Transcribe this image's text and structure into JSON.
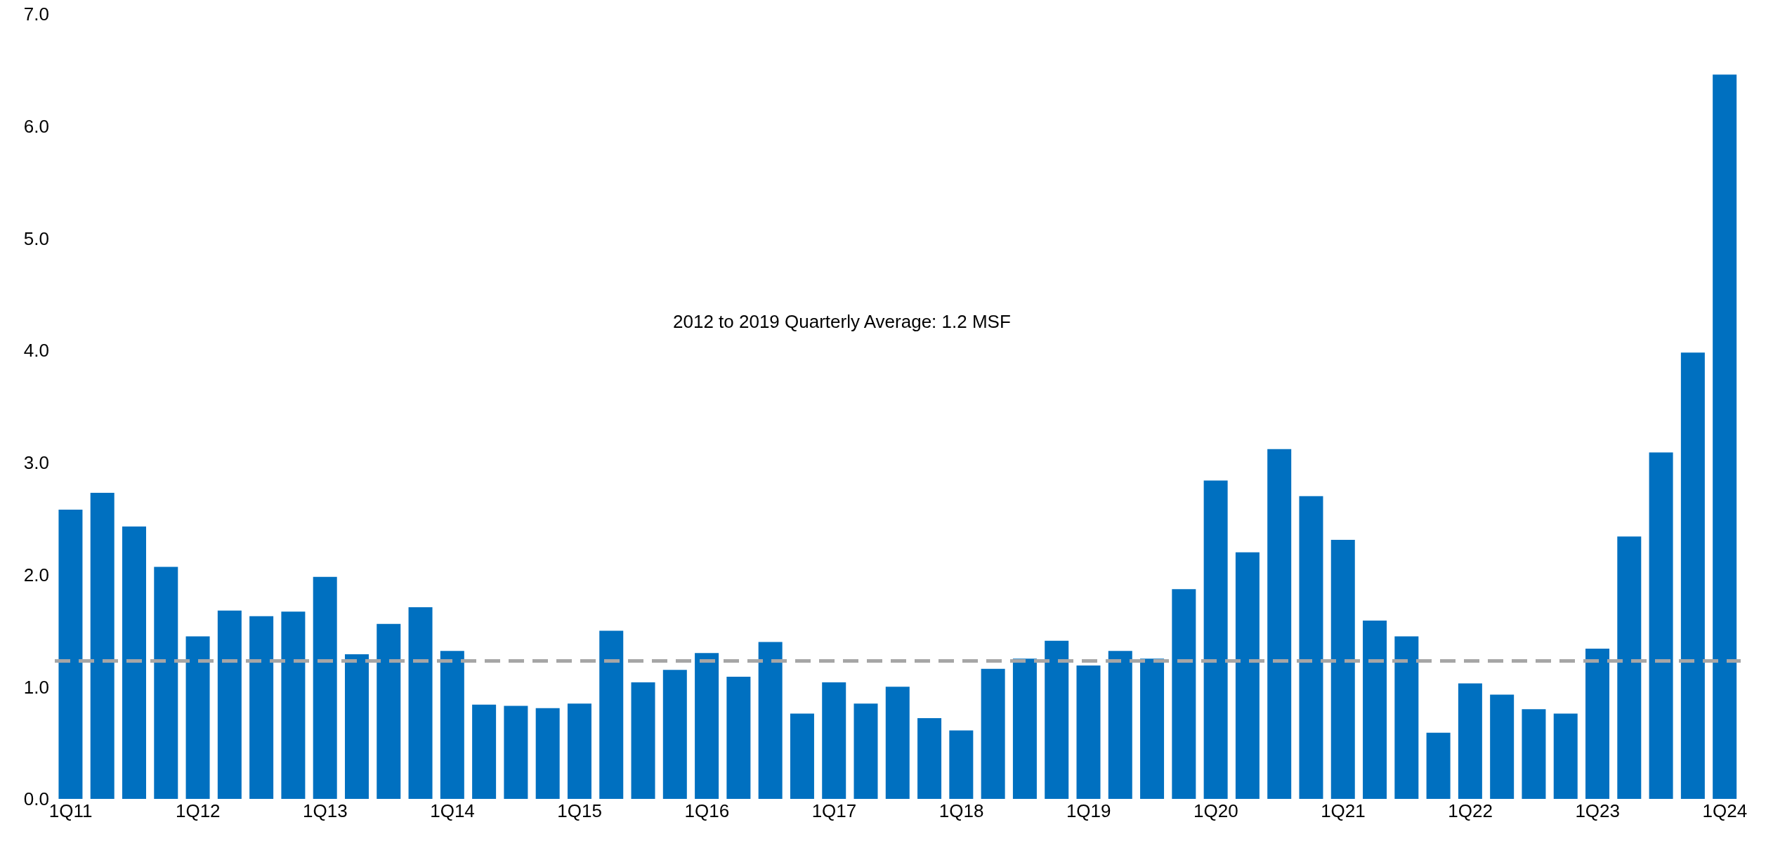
{
  "chart_data": {
    "type": "bar",
    "categories": [
      "1Q11",
      null,
      null,
      null,
      "1Q12",
      null,
      null,
      null,
      "1Q13",
      null,
      null,
      null,
      "1Q14",
      null,
      null,
      null,
      "1Q15",
      null,
      null,
      null,
      "1Q16",
      null,
      null,
      null,
      "1Q17",
      null,
      null,
      null,
      "1Q18",
      null,
      null,
      null,
      "1Q19",
      null,
      null,
      null,
      "1Q20",
      null,
      null,
      null,
      "1Q21",
      null,
      null,
      null,
      "1Q22",
      null,
      null,
      null,
      "1Q23",
      null,
      null,
      null,
      "1Q24"
    ],
    "values": [
      2.58,
      2.73,
      2.43,
      2.07,
      1.45,
      1.68,
      1.63,
      1.67,
      1.98,
      1.29,
      1.56,
      1.71,
      1.32,
      0.84,
      0.83,
      0.81,
      0.85,
      1.5,
      1.04,
      1.15,
      1.3,
      1.09,
      1.4,
      0.76,
      1.04,
      0.85,
      1.0,
      0.72,
      0.61,
      1.16,
      1.25,
      1.41,
      1.19,
      1.32,
      1.25,
      1.87,
      2.84,
      2.2,
      3.12,
      2.7,
      2.31,
      1.59,
      1.45,
      0.59,
      1.03,
      0.93,
      0.8,
      0.76,
      1.34,
      2.34,
      3.09,
      3.98,
      6.46
    ],
    "color": "#0070c0",
    "ylim": [
      0,
      7
    ],
    "yticks": [
      {
        "value": 0,
        "label": "0.0"
      },
      {
        "value": 1,
        "label": "1.0"
      },
      {
        "value": 2,
        "label": "2.0"
      },
      {
        "value": 3,
        "label": "3.0"
      },
      {
        "value": 4,
        "label": "4.0"
      },
      {
        "value": 5,
        "label": "5.0"
      },
      {
        "value": 6,
        "label": "6.0"
      },
      {
        "value": 7,
        "label": "7.0"
      }
    ],
    "ref_lines": [
      {
        "axis": "y",
        "value": 1.23,
        "color": "#a6a6a6",
        "line_style": "dashed"
      }
    ],
    "annotations": [
      "2012 to 2019 Quarterly Average: 1.2 MSF"
    ],
    "grid": false
  }
}
